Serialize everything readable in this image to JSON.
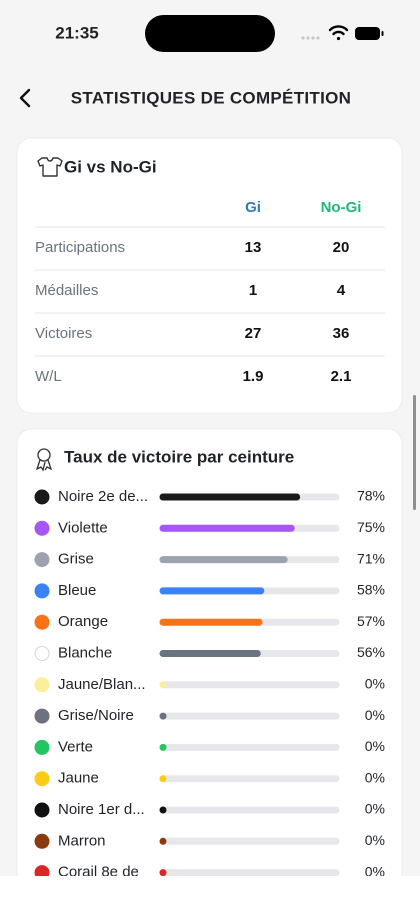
{
  "status_bar": {
    "time": "21:35"
  },
  "header": {
    "title": "STATISTIQUES DE COMPÉTITION"
  },
  "table": {
    "title": "Gi vs No-Gi",
    "columns": [
      "Gi",
      "No-Gi"
    ],
    "column_colors": [
      "#2f7bb5",
      "#1db87a"
    ],
    "rows": [
      [
        "Participations",
        13,
        20
      ],
      [
        "Médailles",
        1,
        4
      ],
      [
        "Victoires",
        27,
        36
      ],
      [
        "W/L",
        1.9,
        2.1
      ]
    ]
  },
  "chart_data": {
    "type": "bar",
    "title": "Taux de victoire par ceinture",
    "categories": [
      "Noire 2e de...",
      "Violette",
      "Grise",
      "Bleue",
      "Orange",
      "Blanche",
      "Jaune/Blan...",
      "Grise/Noire",
      "Verte",
      "Jaune",
      "Noire 1er d...",
      "Marron",
      "Corail 8e de"
    ],
    "values": [
      78,
      75,
      71,
      58,
      57,
      56,
      0,
      0,
      0,
      0,
      0,
      0,
      0
    ],
    "value_labels": [
      "78%",
      "75%",
      "71%",
      "58%",
      "57%",
      "56%",
      "0%",
      "0%",
      "0%",
      "0%",
      "0%",
      "0%",
      "0%"
    ],
    "colors": [
      "#1a1a1a",
      "#a855f7",
      "#9ca3af",
      "#3b82f6",
      "#f97316",
      "#6b7280",
      "#fbef9a",
      "#6b7280",
      "#22c55e",
      "#facc15",
      "#111111",
      "#8b3a0f",
      "#dc2626"
    ],
    "dot_colors": [
      "#1a1a1a",
      "#a855f7",
      "#9ca3af",
      "#3b82f6",
      "#f97316",
      "#ffffff",
      "#fbef9a",
      "#6b7280",
      "#22c55e",
      "#facc15",
      "#111111",
      "#8b3a0f",
      "#dc2626"
    ],
    "xlim": [
      0,
      100
    ]
  }
}
